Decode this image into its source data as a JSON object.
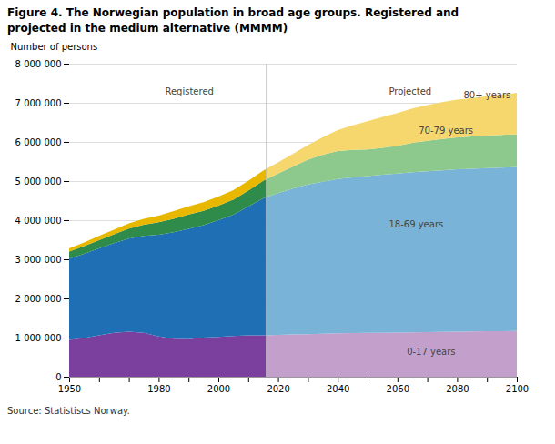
{
  "chart_data": {
    "type": "area",
    "stacked": true,
    "title": "Figure 4. The Norwegian population in broad age groups. Registered and\nprojected in the medium alternative (MMMM)",
    "ylabel": "Number of persons",
    "source": "Source: Statistiscs Norway.",
    "grid": true,
    "series": [
      {
        "name": "0-17 years",
        "color": "#7b3f9e",
        "x": [
          1950,
          1955,
          1960,
          1965,
          1970,
          1975,
          1980,
          1985,
          1990,
          1995,
          2000,
          2005,
          2010,
          2015,
          2016
        ],
        "values": [
          940000,
          990000,
          1060000,
          1120000,
          1150000,
          1120000,
          1030000,
          970000,
          960000,
          1000000,
          1020000,
          1040000,
          1060000,
          1060000,
          1060000
        ]
      },
      {
        "name": "18-69 years",
        "color": "#1f6fb5",
        "x": [
          1950,
          1955,
          1960,
          1965,
          1970,
          1975,
          1980,
          1985,
          1990,
          1995,
          2000,
          2005,
          2010,
          2015,
          2016
        ],
        "values": [
          2080000,
          2150000,
          2220000,
          2290000,
          2380000,
          2480000,
          2600000,
          2720000,
          2820000,
          2870000,
          2980000,
          3100000,
          3290000,
          3500000,
          3530000
        ]
      },
      {
        "name": "70-79 years",
        "color": "#2e8b4a",
        "x": [
          1950,
          1955,
          1960,
          1965,
          1970,
          1975,
          1980,
          1985,
          1990,
          1995,
          2000,
          2005,
          2010,
          2015,
          2016
        ],
        "values": [
          175000,
          195000,
          210000,
          230000,
          255000,
          285000,
          315000,
          345000,
          365000,
          370000,
          375000,
          385000,
          405000,
          445000,
          455000
        ]
      },
      {
        "name": "80+ years",
        "color": "#e8b800",
        "x": [
          1950,
          1955,
          1960,
          1965,
          1970,
          1975,
          1980,
          1985,
          1990,
          1995,
          2000,
          2005,
          2010,
          2015,
          2016
        ],
        "values": [
          85000,
          95000,
          108000,
          118000,
          132000,
          150000,
          170000,
          195000,
          210000,
          220000,
          230000,
          242000,
          250000,
          260000,
          265000
        ]
      },
      {
        "name": "0-17 years",
        "color": "#c3a0cc",
        "x": [
          2016,
          2020,
          2025,
          2030,
          2035,
          2040,
          2045,
          2050,
          2055,
          2060,
          2065,
          2070,
          2075,
          2080,
          2085,
          2090,
          2095,
          2100
        ],
        "values": [
          1060000,
          1070000,
          1080000,
          1090000,
          1100000,
          1110000,
          1115000,
          1120000,
          1125000,
          1130000,
          1135000,
          1140000,
          1145000,
          1150000,
          1155000,
          1160000,
          1165000,
          1170000
        ]
      },
      {
        "name": "18-69 years",
        "color": "#7ab3d8",
        "x": [
          2016,
          2020,
          2025,
          2030,
          2035,
          2040,
          2045,
          2050,
          2055,
          2060,
          2065,
          2070,
          2075,
          2080,
          2085,
          2090,
          2095,
          2100
        ],
        "values": [
          3530000,
          3620000,
          3730000,
          3820000,
          3880000,
          3940000,
          3980000,
          4010000,
          4040000,
          4060000,
          4090000,
          4110000,
          4130000,
          4150000,
          4160000,
          4170000,
          4180000,
          4190000
        ]
      },
      {
        "name": "70-79 years",
        "color": "#8dc98d",
        "x": [
          2016,
          2020,
          2025,
          2030,
          2035,
          2040,
          2045,
          2050,
          2055,
          2060,
          2065,
          2070,
          2075,
          2080,
          2085,
          2090,
          2095,
          2100
        ],
        "values": [
          455000,
          500000,
          565000,
          635000,
          695000,
          715000,
          700000,
          680000,
          685000,
          710000,
          750000,
          780000,
          800000,
          815000,
          825000,
          832000,
          837000,
          840000
        ]
      },
      {
        "name": "80+ years",
        "color": "#f5d76e",
        "x": [
          2016,
          2020,
          2025,
          2030,
          2035,
          2040,
          2045,
          2050,
          2055,
          2060,
          2065,
          2070,
          2075,
          2080,
          2085,
          2090,
          2095,
          2100
        ],
        "values": [
          265000,
          285000,
          325000,
          375000,
          445000,
          540000,
          630000,
          720000,
          790000,
          840000,
          880000,
          910000,
          940000,
          965000,
          985000,
          1005000,
          1025000,
          1055000
        ]
      }
    ],
    "vline": 2016,
    "annotations": [
      {
        "text": "Registered",
        "x": 1982,
        "y": 7300000
      },
      {
        "text": "Projected",
        "x": 2057,
        "y": 7300000
      },
      {
        "text": "80+ years",
        "x": 2082,
        "y": 7200000
      },
      {
        "text": "70-79 years",
        "x": 2067,
        "y": 6300000
      },
      {
        "text": "18-69 years",
        "x": 2057,
        "y": 3900000
      },
      {
        "text": "0-17 years",
        "x": 2063,
        "y": 650000
      }
    ],
    "xlim": [
      1950,
      2100
    ],
    "xticks": [
      1950,
      {
        "value": 1960,
        "label": null
      },
      {
        "value": 1970,
        "label": null
      },
      1980,
      {
        "value": 1990,
        "label": null
      },
      2000,
      {
        "value": 2010,
        "label": null
      },
      2020,
      {
        "value": 2030,
        "label": null
      },
      2040,
      {
        "value": 2050,
        "label": null
      },
      2060,
      {
        "value": 2070,
        "label": null
      },
      2080,
      {
        "value": 2090,
        "label": null
      },
      2100
    ],
    "ylim": [
      0,
      8000000
    ],
    "yticks": [
      0,
      {
        "value": 1000000,
        "label": "1 000 000"
      },
      {
        "value": 2000000,
        "label": "2 000 000"
      },
      {
        "value": 3000000,
        "label": "3 000 000"
      },
      {
        "value": 4000000,
        "label": "4 000 000"
      },
      {
        "value": 5000000,
        "label": "5 000 000"
      },
      {
        "value": 6000000,
        "label": "6 000 000"
      },
      {
        "value": 7000000,
        "label": "7 000 000"
      },
      {
        "value": 8000000,
        "label": "8 000 000"
      }
    ]
  }
}
